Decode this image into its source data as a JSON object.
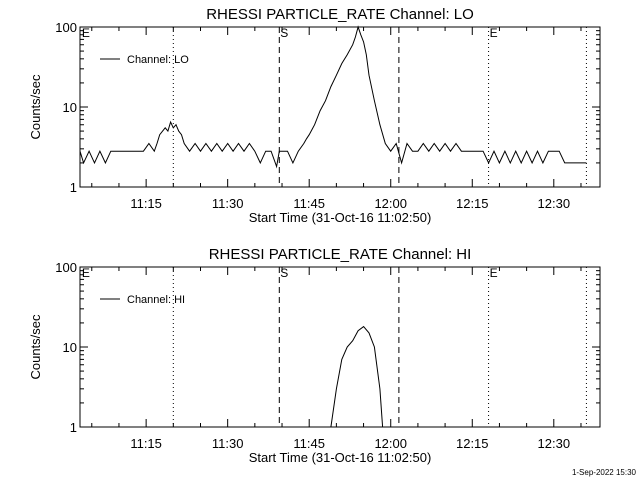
{
  "chart_data": [
    {
      "type": "line",
      "title": "RHESSI PARTICLE_RATE Channel: LO",
      "xlabel": "Start Time (31-Oct-16 11:02:50)",
      "ylabel": "Counts/sec",
      "yscale": "log",
      "ylim": [
        1,
        100
      ],
      "xlim": [
        "11:02:50",
        "12:38:30"
      ],
      "x_ticks": [
        "11:15",
        "11:30",
        "11:45",
        "12:00",
        "12:15",
        "12:30"
      ],
      "y_ticks": [
        "1",
        "10",
        "100"
      ],
      "legend": {
        "placement": "top-left",
        "entries": [
          "Channel: LO"
        ]
      },
      "markers": {
        "dotted": [
          "11:20:00",
          "12:18:00",
          "12:36:00"
        ],
        "dashed": [
          "11:39:30",
          "12:01:30"
        ],
        "labels": [
          {
            "text": "E",
            "at": "11:03:00"
          },
          {
            "text": "S",
            "at": "11:39:30"
          },
          {
            "text": "E",
            "at": "12:18:00"
          }
        ]
      },
      "series": [
        {
          "name": "Channel: LO",
          "x": [
            "11:02:50",
            "11:03:30",
            "11:04:30",
            "11:05:30",
            "11:06:30",
            "11:07:30",
            "11:08:30",
            "11:09:30",
            "11:10:30",
            "11:11:30",
            "11:13:00",
            "11:14:30",
            "11:15:30",
            "11:16:30",
            "11:17:00",
            "11:17:30",
            "11:18:30",
            "11:19:00",
            "11:19:30",
            "11:20:00",
            "11:20:30",
            "11:21:00",
            "11:21:30",
            "11:22:00",
            "11:23:00",
            "11:24:00",
            "11:25:00",
            "11:26:00",
            "11:27:00",
            "11:28:00",
            "11:29:00",
            "11:30:00",
            "11:31:00",
            "11:32:00",
            "11:33:00",
            "11:34:00",
            "11:35:00",
            "11:36:00",
            "11:37:00",
            "11:38:00",
            "11:39:00",
            "11:39:30",
            "11:40:00",
            "11:41:00",
            "11:42:00",
            "11:43:00",
            "11:44:00",
            "11:44:30",
            "11:45:00",
            "11:46:00",
            "11:47:00",
            "11:48:00",
            "11:49:00",
            "11:50:00",
            "11:51:00",
            "11:52:00",
            "11:53:00",
            "11:53:30",
            "11:54:00",
            "11:54:30",
            "11:55:00",
            "11:55:30",
            "11:56:00",
            "11:57:00",
            "11:58:00",
            "11:59:00",
            "12:00:00",
            "12:01:00",
            "12:02:00",
            "12:03:00",
            "12:04:00",
            "12:05:00",
            "12:06:00",
            "12:07:00",
            "12:08:00",
            "12:09:00",
            "12:10:00",
            "12:11:00",
            "12:12:00",
            "12:13:00",
            "12:14:00",
            "12:15:00",
            "12:16:00",
            "12:17:00",
            "12:18:00",
            "12:19:00",
            "12:20:00",
            "12:21:00",
            "12:22:00",
            "12:23:00",
            "12:24:00",
            "12:25:00",
            "12:26:00",
            "12:27:00",
            "12:28:00",
            "12:29:00",
            "12:30:00",
            "12:31:00",
            "12:32:00",
            "12:33:00",
            "12:34:00",
            "12:35:00",
            "12:36:00"
          ],
          "values": [
            2.8,
            2.0,
            2.8,
            2.0,
            2.8,
            2.0,
            2.8,
            2.8,
            2.8,
            2.8,
            2.8,
            2.8,
            3.5,
            2.8,
            3.5,
            4.5,
            5.5,
            5.0,
            6.5,
            5.5,
            6.0,
            5.0,
            4.5,
            3.5,
            2.8,
            3.5,
            2.8,
            3.5,
            2.8,
            3.5,
            2.8,
            3.5,
            2.8,
            3.5,
            2.8,
            3.5,
            2.8,
            2.0,
            2.8,
            2.8,
            1.8,
            2.8,
            2.8,
            2.8,
            2.0,
            2.8,
            3.5,
            4.0,
            4.5,
            6.0,
            9.0,
            12,
            18,
            25,
            35,
            45,
            60,
            75,
            100,
            80,
            65,
            45,
            25,
            12,
            6.0,
            3.5,
            2.8,
            3.5,
            2.0,
            3.5,
            2.8,
            2.8,
            3.5,
            2.8,
            3.5,
            2.8,
            3.5,
            2.8,
            3.5,
            2.8,
            2.8,
            2.8,
            2.8,
            2.8,
            2.0,
            2.8,
            2.0,
            2.8,
            2.0,
            2.8,
            2.0,
            2.8,
            2.0,
            2.8,
            2.0,
            2.8,
            2.8,
            2.8,
            2.0,
            2.0,
            2.0,
            2.0,
            2.0
          ]
        }
      ]
    },
    {
      "type": "line",
      "title": "RHESSI PARTICLE_RATE Channel: HI",
      "xlabel": "Start Time (31-Oct-16 11:02:50)",
      "ylabel": "Counts/sec",
      "yscale": "log",
      "ylim": [
        1,
        100
      ],
      "xlim": [
        "11:02:50",
        "12:38:30"
      ],
      "x_ticks": [
        "11:15",
        "11:30",
        "11:45",
        "12:00",
        "12:15",
        "12:30"
      ],
      "y_ticks": [
        "1",
        "10",
        "100"
      ],
      "legend": {
        "placement": "top-left",
        "entries": [
          "Channel: HI"
        ]
      },
      "markers": {
        "dotted": [
          "11:20:00",
          "12:18:00",
          "12:36:00"
        ],
        "dashed": [
          "11:39:30",
          "12:01:30"
        ],
        "labels": [
          {
            "text": "E",
            "at": "11:03:00"
          },
          {
            "text": "S",
            "at": "11:39:30"
          },
          {
            "text": "E",
            "at": "12:18:00"
          }
        ]
      },
      "series": [
        {
          "name": "Channel: HI",
          "x": [
            "11:49:00",
            "11:50:00",
            "11:51:00",
            "11:52:00",
            "11:53:00",
            "11:54:00",
            "11:55:00",
            "11:56:00",
            "11:57:00",
            "11:58:00",
            "11:58:30"
          ],
          "values": [
            1.0,
            3.0,
            7.0,
            10,
            12,
            16,
            18,
            15,
            10,
            3.0,
            1.0
          ]
        }
      ]
    }
  ],
  "footer": {
    "timestamp": "1-Sep-2022 15:30"
  }
}
